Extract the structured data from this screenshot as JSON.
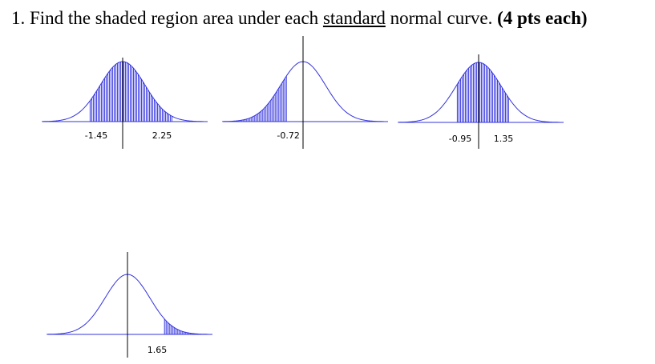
{
  "question": {
    "number": "1.",
    "text": "Find the shaded region area under each",
    "underlined": "standard",
    "rest": "normal curve.",
    "bold": "(4 pts each)"
  },
  "curves": [
    {
      "shade": "between",
      "bounds": [
        -1.45,
        2.25
      ]
    },
    {
      "shade": "left",
      "bounds": [
        -0.72
      ]
    },
    {
      "shade": "between",
      "bounds": [
        -0.95,
        1.35
      ]
    },
    {
      "shade": "right",
      "bounds": [
        1.65
      ]
    }
  ]
}
